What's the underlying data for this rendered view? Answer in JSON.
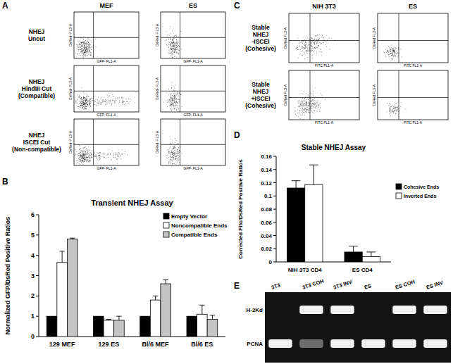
{
  "chart_data": [
    {
      "type": "bar",
      "title": "Transient NHEJ Assay",
      "y_label": "Normalized GFP/DsRed Positive Ratios",
      "categories": [
        "129 MEF",
        "129 ES",
        "Bl/6 MEF",
        "Bl/6 ES"
      ],
      "series": [
        {
          "name": "Empty Vector",
          "color": "#000000",
          "values": [
            1,
            1,
            1,
            1
          ]
        },
        {
          "name": "Noncompatible Ends",
          "color": "#ffffff",
          "values": [
            3.65,
            0.8,
            1.8,
            1.1
          ],
          "errors": [
            0.55,
            0.05,
            0.2,
            0.45
          ]
        },
        {
          "name": "Compatible Ends",
          "color": "#c4c4c4",
          "values": [
            4.8,
            0.8,
            2.6,
            0.85
          ],
          "errors": [
            0.05,
            0.2,
            0.2,
            0.2
          ]
        }
      ],
      "ylim": [
        0,
        6
      ],
      "yticks": [
        0,
        1,
        2,
        3,
        4,
        5,
        6
      ],
      "grid": false,
      "legend": "right"
    },
    {
      "type": "bar",
      "title": "Stable NHEJ Assay",
      "y_label": "Corrected Fitc/DsRed Positive Ratios",
      "categories": [
        "NIH 3T3 CD4",
        "ES CD4"
      ],
      "series": [
        {
          "name": "Cohesive Ends",
          "color": "#000000",
          "values": [
            0.112,
            0.015
          ],
          "errors": [
            0.011,
            0.009
          ]
        },
        {
          "name": "Inverted Ends",
          "color": "#ffffff",
          "values": [
            0.117,
            0.008
          ],
          "errors": [
            0.03,
            0.007
          ]
        }
      ],
      "ylim": [
        0,
        0.16
      ],
      "yticks": [
        0,
        0.02,
        0.04,
        0.06,
        0.08,
        0.1,
        0.12,
        0.14,
        0.16
      ],
      "grid": false,
      "legend": "right"
    }
  ],
  "panels": {
    "a": {
      "letter": "A",
      "columns": [
        "MEF",
        "ES"
      ],
      "rows": [
        [
          "NHEJ",
          "Uncut"
        ],
        [
          "NHEJ",
          "HindIII Cut",
          "(Compatible)"
        ],
        [
          "NHEJ",
          "ISCEI Cut",
          "(Non-compatible)"
        ]
      ],
      "x_label": "GFP- FL1-A",
      "y_label": "DsRed- FL3-A"
    },
    "b": {
      "letter": "B"
    },
    "c": {
      "letter": "C",
      "columns": [
        "NIH 3T3",
        "ES"
      ],
      "rows": [
        [
          "Stable",
          "NHEJ",
          "-ISCEI",
          "(Cohesive)"
        ],
        [
          "Stable",
          "NHEJ",
          "+ISCEI",
          "(Cohesive)"
        ]
      ],
      "x_label": "FITC FL1-A",
      "y_label": "DsRed FL3-A"
    },
    "d": {
      "letter": "D"
    },
    "e": {
      "letter": "E",
      "lanes": [
        "3T3",
        "3T3 COH",
        "3T3 INV",
        "ES",
        "ES COH",
        "ES INV"
      ],
      "rows": [
        {
          "label": "H-2Kd",
          "bands": [
            0,
            1,
            1,
            0,
            1,
            1
          ]
        },
        {
          "label": "PCNA",
          "bands": [
            1,
            0.4,
            1,
            1,
            1,
            1
          ]
        }
      ]
    }
  }
}
